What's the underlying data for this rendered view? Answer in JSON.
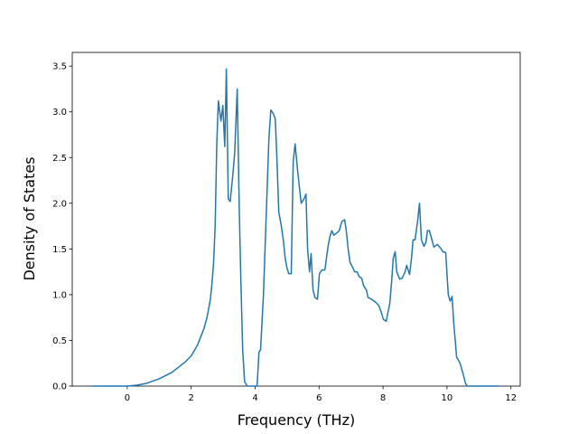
{
  "chart_data": {
    "type": "line",
    "xlabel": "Frequency (THz)",
    "ylabel": "Density of States",
    "color": "#1f77b4",
    "x": [
      -1.1,
      0,
      0.3,
      0.6,
      1.0,
      1.4,
      1.8,
      2.0,
      2.2,
      2.4,
      2.5,
      2.6,
      2.65,
      2.7,
      2.75,
      2.8,
      2.85,
      2.93,
      2.99,
      3.05,
      3.1,
      3.16,
      3.22,
      3.3,
      3.36,
      3.44,
      3.5,
      3.55,
      3.61,
      3.67,
      3.75,
      4.06,
      4.12,
      4.17,
      4.26,
      4.34,
      4.43,
      4.49,
      4.57,
      4.63,
      4.68,
      4.74,
      4.82,
      4.88,
      4.94,
      4.99,
      5.05,
      5.13,
      5.19,
      5.25,
      5.33,
      5.44,
      5.53,
      5.59,
      5.64,
      5.7,
      5.75,
      5.81,
      5.87,
      5.95,
      6.01,
      6.09,
      6.18,
      6.29,
      6.35,
      6.4,
      6.46,
      6.57,
      6.63,
      6.71,
      6.8,
      6.85,
      6.91,
      6.97,
      7.05,
      7.11,
      7.19,
      7.25,
      7.33,
      7.39,
      7.48,
      7.53,
      7.64,
      7.76,
      7.87,
      7.95,
      8.01,
      8.1,
      8.15,
      8.21,
      8.27,
      8.32,
      8.38,
      8.43,
      8.52,
      8.6,
      8.69,
      8.74,
      8.83,
      8.89,
      8.94,
      9.0,
      9.08,
      9.14,
      9.2,
      9.28,
      9.34,
      9.39,
      9.45,
      9.53,
      9.59,
      9.7,
      9.82,
      9.87,
      9.96,
      10.04,
      10.1,
      10.16,
      10.21,
      10.3,
      10.41,
      10.49,
      10.58,
      10.63,
      11.62
    ],
    "values": [
      0,
      0,
      0.01,
      0.03,
      0.08,
      0.15,
      0.26,
      0.33,
      0.45,
      0.63,
      0.76,
      0.95,
      1.12,
      1.35,
      1.75,
      2.65,
      3.12,
      2.9,
      3.07,
      2.62,
      3.47,
      2.05,
      2.02,
      2.3,
      2.55,
      3.25,
      2.0,
      1.2,
      0.4,
      0.05,
      0,
      0,
      0.37,
      0.4,
      1.0,
      1.8,
      2.7,
      3.02,
      2.98,
      2.92,
      2.5,
      1.9,
      1.75,
      1.6,
      1.4,
      1.3,
      1.23,
      1.23,
      2.45,
      2.65,
      2.35,
      2.0,
      2.05,
      2.1,
      1.5,
      1.25,
      1.45,
      1.05,
      0.97,
      0.95,
      1.23,
      1.27,
      1.27,
      1.55,
      1.65,
      1.7,
      1.65,
      1.68,
      1.7,
      1.8,
      1.82,
      1.7,
      1.5,
      1.35,
      1.3,
      1.25,
      1.25,
      1.2,
      1.18,
      1.1,
      1.05,
      0.97,
      0.95,
      0.92,
      0.88,
      0.8,
      0.73,
      0.71,
      0.8,
      0.9,
      1.15,
      1.4,
      1.47,
      1.25,
      1.17,
      1.18,
      1.25,
      1.32,
      1.22,
      1.4,
      1.6,
      1.6,
      1.8,
      2.0,
      1.6,
      1.53,
      1.57,
      1.7,
      1.7,
      1.6,
      1.52,
      1.55,
      1.5,
      1.47,
      1.46,
      1.0,
      0.93,
      0.98,
      0.7,
      0.32,
      0.25,
      0.15,
      0.03,
      0,
      0
    ],
    "xlim": [
      -1.72,
      12.29
    ],
    "ylim": [
      0,
      3.65
    ],
    "xticks": [
      0,
      2,
      4,
      6,
      8,
      10,
      12
    ],
    "yticks": [
      {
        "value": 0,
        "label": "0.0"
      },
      0.5,
      {
        "value": 1,
        "label": "1.0"
      },
      1.5,
      {
        "value": 2,
        "label": "2.0"
      },
      2.5,
      {
        "value": 3,
        "label": "3.0"
      },
      3.5
    ],
    "grid": false
  }
}
